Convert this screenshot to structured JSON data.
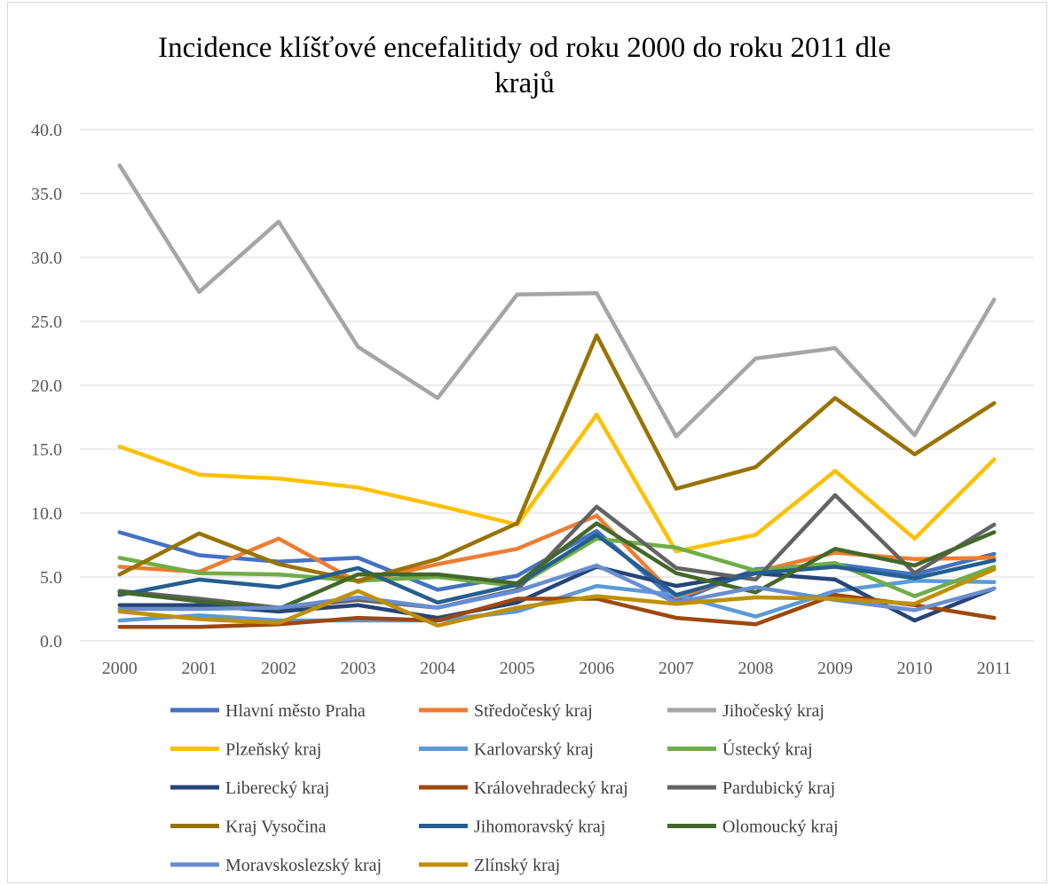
{
  "chart_data": {
    "type": "line",
    "title": "Incidence klíšťové encefalitidy od roku 2000 do roku 2011 dle krajů",
    "title_lines": [
      "Incidence klíšťové encefalitidy od roku 2000 do roku 2011 dle",
      "krajů"
    ],
    "xlabel": "",
    "ylabel": "",
    "x": [
      "2000",
      "2001",
      "2002",
      "2003",
      "2004",
      "2005",
      "2006",
      "2007",
      "2008",
      "2009",
      "2010",
      "2011"
    ],
    "ylim": [
      0,
      40
    ],
    "yticks": [
      "0.0",
      "5.0",
      "10.0",
      "15.0",
      "20.0",
      "25.0",
      "30.0",
      "35.0",
      "40.0"
    ],
    "grid": "horizontal",
    "legend_position": "bottom",
    "series": [
      {
        "name": "Hlavní město Praha",
        "color": "#4472C4",
        "values": [
          8.5,
          6.7,
          6.2,
          6.5,
          4.0,
          5.1,
          8.6,
          3.1,
          5.6,
          6.0,
          5.2,
          6.8
        ]
      },
      {
        "name": "Středočeský kraj",
        "color": "#ED7D31",
        "values": [
          5.8,
          5.4,
          8.0,
          4.6,
          6.0,
          7.2,
          9.8,
          3.4,
          5.4,
          6.9,
          6.4,
          6.5
        ]
      },
      {
        "name": "Jihočeský kraj",
        "color": "#A5A5A5",
        "values": [
          37.2,
          27.3,
          32.8,
          23.0,
          19.0,
          27.1,
          27.2,
          16.0,
          22.1,
          22.9,
          16.1,
          26.7
        ]
      },
      {
        "name": "Plzeňský kraj",
        "color": "#FFC000",
        "values": [
          15.2,
          13.0,
          12.7,
          12.0,
          10.6,
          9.1,
          17.7,
          7.0,
          8.3,
          13.3,
          8.0,
          14.2
        ]
      },
      {
        "name": "Karlovarský kraj",
        "color": "#5B9BD5",
        "values": [
          1.6,
          2.0,
          1.6,
          1.6,
          1.6,
          2.3,
          4.3,
          3.6,
          1.9,
          3.9,
          4.7,
          4.6
        ]
      },
      {
        "name": "Ústecký kraj",
        "color": "#70AD47",
        "values": [
          6.5,
          5.3,
          5.2,
          4.7,
          5.0,
          4.3,
          8.0,
          7.3,
          5.5,
          6.1,
          3.5,
          5.8
        ]
      },
      {
        "name": "Liberecký kraj",
        "color": "#264478",
        "values": [
          2.8,
          2.8,
          2.3,
          2.8,
          1.8,
          3.0,
          5.8,
          4.3,
          5.3,
          4.8,
          1.6,
          4.1
        ]
      },
      {
        "name": "Královehradecký kraj",
        "color": "#9E480E",
        "values": [
          1.1,
          1.1,
          1.3,
          1.8,
          1.6,
          3.3,
          3.3,
          1.8,
          1.3,
          3.6,
          2.8,
          1.8
        ]
      },
      {
        "name": "Pardubický kraj",
        "color": "#636363",
        "values": [
          3.9,
          3.3,
          2.6,
          3.2,
          2.6,
          4.0,
          10.5,
          5.7,
          4.8,
          11.4,
          5.3,
          9.1
        ]
      },
      {
        "name": "Kraj Vysočina",
        "color": "#997300",
        "values": [
          5.2,
          8.4,
          6.0,
          4.7,
          6.4,
          9.2,
          23.9,
          11.9,
          13.6,
          19.0,
          14.6,
          18.6
        ]
      },
      {
        "name": "Jihomoravský kraj",
        "color": "#255E91",
        "values": [
          3.6,
          4.8,
          4.2,
          5.7,
          3.0,
          4.4,
          8.3,
          3.6,
          5.3,
          5.8,
          4.9,
          6.3
        ]
      },
      {
        "name": "Olomoucký kraj",
        "color": "#43682B",
        "values": [
          3.8,
          3.1,
          2.5,
          5.2,
          5.2,
          4.5,
          9.2,
          5.3,
          3.8,
          7.2,
          5.9,
          8.5
        ]
      },
      {
        "name": "Moravskoslezský kraj",
        "color": "#698ED0",
        "values": [
          2.5,
          2.5,
          2.6,
          3.4,
          2.6,
          3.9,
          5.9,
          3.0,
          4.2,
          3.2,
          2.4,
          4.1
        ]
      },
      {
        "name": "Zlínský kraj",
        "color": "#BF9000",
        "values": [
          2.3,
          1.7,
          1.4,
          3.9,
          1.2,
          2.6,
          3.5,
          2.9,
          3.4,
          3.3,
          2.9,
          5.6
        ]
      }
    ]
  }
}
